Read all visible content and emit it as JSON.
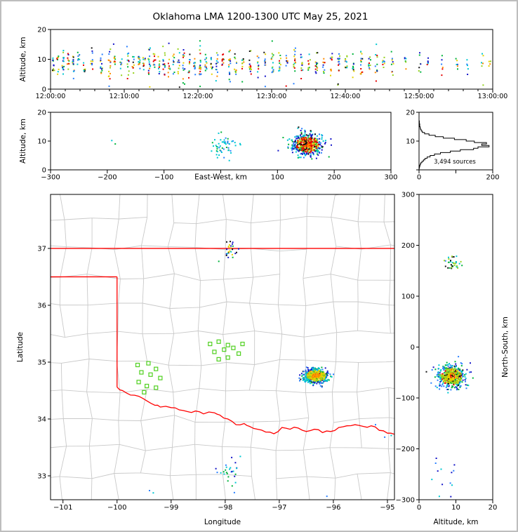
{
  "title": "Oklahoma LMA 1200-1300 UTC May 25, 2021",
  "panels": {
    "time_height": {
      "ylabel": "Altitude, km",
      "ytick_labels": [
        "0",
        "10",
        "20"
      ],
      "xtick_labels": [
        "12:00:00",
        "12:10:00",
        "12:20:00",
        "12:30:00",
        "12:40:00",
        "12:50:00",
        "13:00:00"
      ],
      "xlim_seconds": [
        0,
        3600
      ],
      "ylim_km": [
        0,
        20
      ]
    },
    "ew_height": {
      "ylabel": "Altitude, km",
      "xlabel": "East-West, km",
      "xticks": [
        -300,
        -200,
        -100,
        0,
        100,
        200,
        300
      ],
      "yticks": [
        0,
        10,
        20
      ],
      "xlim_km": [
        -300,
        300
      ],
      "ylim_km": [
        0,
        20
      ]
    },
    "alt_histogram": {
      "annotation": "3,494 sources",
      "xticks": [
        0,
        100,
        200
      ],
      "xtick_labels": [
        "0",
        "",
        "200"
      ],
      "yticks": [
        0,
        10,
        20
      ],
      "ytick_labels": [
        "",
        "10",
        "20"
      ],
      "xlim_count": [
        0,
        200
      ],
      "ylim_km": [
        0,
        20
      ]
    },
    "map": {
      "xlabel": "Longitude",
      "ylabel": "Latitude",
      "xticks": [
        -101,
        -100,
        -99,
        -98,
        -97,
        -96,
        -95
      ],
      "yticks": [
        33,
        34,
        35,
        36,
        37
      ],
      "lon_lim": [
        -101.23,
        -94.87
      ],
      "lat_lim": [
        32.58,
        37.95
      ]
    },
    "ns_height": {
      "xlabel": "Altitude, km",
      "ylabel": "North-South, km",
      "xticks": [
        0,
        10,
        20
      ],
      "yticks": [
        300,
        200,
        100,
        0,
        -100,
        -200,
        -300
      ],
      "xlim_km": [
        0,
        20
      ],
      "ylim_km": [
        -300,
        300
      ]
    }
  },
  "chart_data": {
    "type": "scatter",
    "title": "Oklahoma LMA 1200-1300 UTC May 25, 2021",
    "total_sources": 3494,
    "palette": [
      "#1515c8",
      "#2980ff",
      "#00c8d2",
      "#00b43c",
      "#96d21e",
      "#e6d200",
      "#ff8c00",
      "#e60000"
    ],
    "colors": {
      "state_border": "#ff0000",
      "county_lines": "#c9c9c9",
      "stations": "#50d020",
      "histogram_line": "#000000",
      "black_points": "#141414"
    },
    "time_flashes": [
      [
        0.4,
        10,
        8.2,
        2.0
      ],
      [
        1.0,
        8,
        9.0,
        1.6
      ],
      [
        1.7,
        14,
        8.4,
        2.4
      ],
      [
        2.4,
        9,
        9.2,
        1.8
      ],
      [
        3.1,
        13,
        8.0,
        2.4
      ],
      [
        3.8,
        8,
        10.0,
        1.6
      ],
      [
        4.6,
        7,
        7.5,
        1.8
      ],
      [
        5.6,
        10,
        9.0,
        2.0
      ],
      [
        6.9,
        12,
        8.6,
        2.4
      ],
      [
        8.0,
        15,
        8.2,
        2.8
      ],
      [
        8.7,
        9,
        9.6,
        1.8
      ],
      [
        9.6,
        8,
        8.0,
        1.8
      ],
      [
        10.5,
        13,
        9.0,
        2.4
      ],
      [
        11.2,
        9,
        8.6,
        1.8
      ],
      [
        12.0,
        12,
        9.0,
        2.0
      ],
      [
        12.7,
        9,
        8.2,
        1.8
      ],
      [
        13.4,
        17,
        8.6,
        2.8
      ],
      [
        14.1,
        11,
        9.0,
        2.0
      ],
      [
        14.7,
        9,
        8.0,
        1.8
      ],
      [
        15.4,
        13,
        8.6,
        2.4
      ],
      [
        16.1,
        10,
        9.0,
        1.9
      ],
      [
        16.7,
        8,
        8.4,
        1.8
      ],
      [
        17.4,
        11,
        8.0,
        2.2
      ],
      [
        18.1,
        15,
        8.6,
        2.8
      ],
      [
        18.8,
        10,
        9.0,
        1.9
      ],
      [
        19.5,
        11,
        8.6,
        2.0
      ],
      [
        20.3,
        19,
        8.2,
        3.0
      ],
      [
        21.1,
        12,
        9.0,
        2.0
      ],
      [
        21.9,
        9,
        8.6,
        1.8
      ],
      [
        22.6,
        13,
        8.0,
        2.4
      ],
      [
        23.4,
        10,
        9.0,
        1.9
      ],
      [
        24.3,
        15,
        8.6,
        2.8
      ],
      [
        25.1,
        11,
        8.0,
        2.2
      ],
      [
        26.1,
        9,
        9.0,
        1.8
      ],
      [
        27.1,
        13,
        8.6,
        2.4
      ],
      [
        28.1,
        9,
        8.0,
        1.8
      ],
      [
        29.1,
        12,
        9.0,
        2.1
      ],
      [
        30.1,
        15,
        8.6,
        2.7
      ],
      [
        31.1,
        11,
        8.1,
        2.1
      ],
      [
        32.1,
        9,
        9.0,
        1.8
      ],
      [
        33.1,
        17,
        8.6,
        2.9
      ],
      [
        34.1,
        11,
        8.0,
        2.2
      ],
      [
        35.1,
        9,
        9.0,
        1.8
      ],
      [
        36.1,
        13,
        8.6,
        2.5
      ],
      [
        37.1,
        9,
        8.0,
        1.8
      ],
      [
        38.1,
        11,
        9.0,
        2.1
      ],
      [
        39.1,
        15,
        8.6,
        2.7
      ],
      [
        40.1,
        11,
        8.0,
        2.2
      ],
      [
        41.1,
        9,
        9.0,
        1.8
      ],
      [
        42.2,
        13,
        8.6,
        2.4
      ],
      [
        43.3,
        9,
        8.0,
        1.8
      ],
      [
        44.2,
        11,
        9.0,
        2.1
      ],
      [
        45.2,
        8,
        8.6,
        1.8
      ],
      [
        46.4,
        9,
        8.0,
        2.0
      ],
      [
        48.1,
        6,
        9.0,
        1.6
      ],
      [
        50.1,
        7,
        8.6,
        1.8
      ],
      [
        51.2,
        5,
        9.4,
        1.4
      ],
      [
        53.1,
        6,
        8.2,
        1.7
      ],
      [
        55.1,
        6,
        9.0,
        1.6
      ],
      [
        56.6,
        5,
        8.6,
        1.4
      ],
      [
        58.6,
        6,
        9.0,
        1.6
      ],
      [
        59.6,
        4,
        8.2,
        1.4
      ]
    ],
    "storm_main": {
      "lon": -96.32,
      "lat": 34.76,
      "lon_sd": 0.12,
      "lat_sd": 0.065,
      "ew_km": 153,
      "ew_sd": 13,
      "ns_km": -58,
      "ns_sd": 11,
      "alt_km": 8.8,
      "alt_sd": 1.9,
      "n": 520
    },
    "cluster_north": {
      "lon": -97.9,
      "lat": 36.95,
      "lon_sd": 0.06,
      "lat_sd": 0.08,
      "ew_km": 8,
      "ew_sd": 14,
      "ns_km": 163,
      "ns_sd": 7,
      "alt_km": 9.2,
      "alt_sd": 1.3,
      "n": 26
    },
    "cluster_south": {
      "lon": -97.95,
      "lat": 33.02,
      "lon_sd": 0.1,
      "lat_sd": 0.16,
      "ew_km": 4,
      "ew_sd": 10,
      "ns_km": -255,
      "ns_sd": 22,
      "alt_km": 7.5,
      "alt_sd": 2.2,
      "n": 26
    },
    "ew_singles": [
      [
        -192,
        10.2
      ],
      [
        -186,
        9.0
      ]
    ],
    "sparse_points_map": [
      [
        -99.4,
        32.74
      ],
      [
        -99.33,
        32.7
      ],
      [
        -95.05,
        33.68
      ],
      [
        -94.93,
        33.71
      ],
      [
        -96.12,
        32.64
      ],
      [
        -95.22,
        33.9
      ],
      [
        -97.72,
        33.34
      ]
    ],
    "stations_swok": [
      [
        -99.62,
        34.95
      ],
      [
        -99.42,
        34.98
      ],
      [
        -99.28,
        34.88
      ],
      [
        -99.55,
        34.82
      ],
      [
        -99.38,
        34.78
      ],
      [
        -99.2,
        34.72
      ],
      [
        -99.6,
        34.65
      ],
      [
        -99.45,
        34.58
      ],
      [
        -99.28,
        34.55
      ],
      [
        -99.5,
        34.47
      ]
    ],
    "stations_central": [
      [
        -98.28,
        35.32
      ],
      [
        -98.12,
        35.36
      ],
      [
        -97.95,
        35.3
      ],
      [
        -98.2,
        35.18
      ],
      [
        -98.02,
        35.22
      ],
      [
        -97.85,
        35.25
      ],
      [
        -98.12,
        35.05
      ],
      [
        -97.95,
        35.08
      ],
      [
        -97.75,
        35.15
      ],
      [
        -97.68,
        35.32
      ]
    ],
    "state_lines": {
      "kansas_lat": 37.0,
      "panhandle_lat": 36.5,
      "texas_lon": -100.0,
      "texas_lon_south_lat": 34.56
    },
    "red_river_path": [
      [
        -100.0,
        34.56
      ],
      [
        -99.9,
        34.5
      ],
      [
        -99.75,
        34.42
      ],
      [
        -99.6,
        34.4
      ],
      [
        -99.45,
        34.32
      ],
      [
        -99.3,
        34.24
      ],
      [
        -99.2,
        34.21
      ],
      [
        -99.0,
        34.2
      ],
      [
        -98.85,
        34.16
      ],
      [
        -98.7,
        34.13
      ],
      [
        -98.55,
        34.14
      ],
      [
        -98.4,
        34.09
      ],
      [
        -98.2,
        34.11
      ],
      [
        -98.1,
        34.07
      ],
      [
        -97.95,
        34.0
      ],
      [
        -97.8,
        33.9
      ],
      [
        -97.65,
        33.92
      ],
      [
        -97.55,
        33.87
      ],
      [
        -97.4,
        33.82
      ],
      [
        -97.25,
        33.77
      ],
      [
        -97.1,
        33.74
      ],
      [
        -96.95,
        33.85
      ],
      [
        -96.8,
        33.82
      ],
      [
        -96.65,
        33.84
      ],
      [
        -96.5,
        33.78
      ],
      [
        -96.35,
        33.82
      ],
      [
        -96.2,
        33.76
      ],
      [
        -96.05,
        33.78
      ],
      [
        -95.9,
        33.85
      ],
      [
        -95.75,
        33.88
      ],
      [
        -95.6,
        33.9
      ],
      [
        -95.45,
        33.87
      ],
      [
        -95.3,
        33.88
      ],
      [
        -95.15,
        33.8
      ],
      [
        -95.0,
        33.75
      ],
      [
        -94.87,
        33.73
      ]
    ],
    "altitude_histogram": {
      "bin_width_km": 0.5,
      "counts": [
        0,
        1,
        2,
        3,
        5,
        8,
        12,
        16,
        22,
        30,
        42,
        58,
        85,
        112,
        148,
        160,
        190,
        170,
        183,
        150,
        128,
        96,
        66,
        44,
        27,
        15,
        9,
        6,
        4,
        3,
        2,
        2,
        1,
        1,
        0,
        0,
        0,
        0,
        0,
        0
      ]
    }
  }
}
